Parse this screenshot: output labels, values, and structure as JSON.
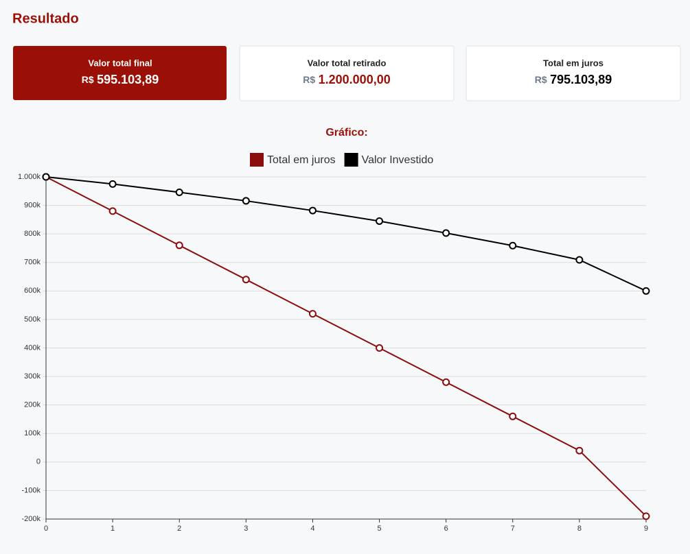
{
  "header": {
    "title": "Resultado"
  },
  "cards": [
    {
      "label": "Valor total final",
      "currency": "R$",
      "value": "595.103,89"
    },
    {
      "label": "Valor total retirado",
      "currency": "R$",
      "value": "1.200.000,00"
    },
    {
      "label": "Total em juros",
      "currency": "R$",
      "value": "795.103,89"
    }
  ],
  "chart_data": {
    "type": "line",
    "title": "Gráfico:",
    "legend": "top",
    "grid": true,
    "x": [
      0,
      1,
      2,
      3,
      4,
      5,
      6,
      7,
      8,
      9
    ],
    "series": [
      {
        "name": "Total em juros",
        "color": "#8b0d0d",
        "values": [
          1000000,
          880000,
          760000,
          640000,
          520000,
          400000,
          280000,
          160000,
          40000,
          -190000
        ]
      },
      {
        "name": "Valor Investido",
        "color": "#000000",
        "values": [
          1000000,
          975000,
          946000,
          916000,
          882000,
          845000,
          803000,
          759000,
          709000,
          600000
        ]
      }
    ],
    "xlim": [
      0,
      9
    ],
    "xticks": [
      0,
      1,
      2,
      3,
      4,
      5,
      6,
      7,
      8,
      9
    ],
    "ylim": [
      -200000,
      1000000
    ],
    "yticks": [
      {
        "value": -200000,
        "label": "-200k"
      },
      {
        "value": -100000,
        "label": "-100k"
      },
      0,
      {
        "value": 100000,
        "label": "100k"
      },
      {
        "value": 200000,
        "label": "200k"
      },
      {
        "value": 300000,
        "label": "300k"
      },
      {
        "value": 400000,
        "label": "400k"
      },
      {
        "value": 500000,
        "label": "500k"
      },
      {
        "value": 600000,
        "label": "600k"
      },
      {
        "value": 700000,
        "label": "700k"
      },
      {
        "value": 800000,
        "label": "800k"
      },
      {
        "value": 900000,
        "label": "900k"
      },
      {
        "value": 1000000,
        "label": "1.000k"
      }
    ]
  }
}
